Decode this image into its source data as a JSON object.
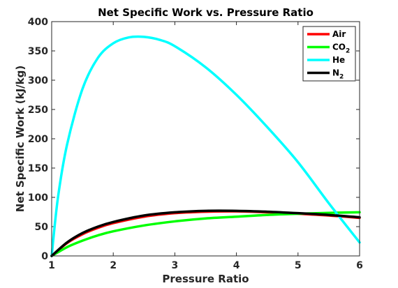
{
  "chart_data": {
    "type": "line",
    "title": "Net Specific Work vs. Pressure Ratio",
    "xlabel": "Pressure Ratio",
    "ylabel": "Net Specific Work (kJ/kg)",
    "xlim": [
      1,
      6
    ],
    "ylim": [
      0,
      400
    ],
    "xticks": [
      1,
      2,
      3,
      4,
      5,
      6
    ],
    "yticks": [
      0,
      50,
      100,
      150,
      200,
      250,
      300,
      350,
      400
    ],
    "grid": false,
    "legend_position": "top-right",
    "series": [
      {
        "name": "Air",
        "color": "#ff0000",
        "x": [
          1,
          1.25,
          1.5,
          1.75,
          2,
          2.5,
          3,
          3.5,
          4,
          4.5,
          5,
          5.5,
          6
        ],
        "y": [
          0,
          22,
          37,
          48,
          56,
          67,
          73,
          75.5,
          76,
          74.5,
          72,
          69,
          65
        ]
      },
      {
        "name": "CO2",
        "label_main": "CO",
        "label_sub": "2",
        "color": "#00ff00",
        "x": [
          1,
          1.25,
          1.5,
          1.75,
          2,
          2.5,
          3,
          3.5,
          4,
          4.5,
          5,
          5.5,
          6
        ],
        "y": [
          0,
          15,
          26,
          35,
          42,
          52,
          59,
          64,
          67,
          70,
          72,
          73.5,
          74.5
        ]
      },
      {
        "name": "He",
        "color": "#00ffff",
        "x": [
          1,
          1.1,
          1.25,
          1.5,
          1.75,
          2,
          2.25,
          2.5,
          2.75,
          3,
          3.5,
          4,
          4.5,
          5,
          5.5,
          6
        ],
        "y": [
          0,
          98,
          190,
          285,
          338,
          363,
          373,
          374,
          369,
          358,
          322,
          275,
          220,
          160,
          90,
          23
        ]
      },
      {
        "name": "N2",
        "label_main": "N",
        "label_sub": "2",
        "color": "#000000",
        "x": [
          1,
          1.25,
          1.5,
          1.75,
          2,
          2.5,
          3,
          3.5,
          4,
          4.5,
          5,
          5.5,
          6
        ],
        "y": [
          0,
          23,
          39,
          50,
          58,
          69,
          74.5,
          77,
          77,
          75.5,
          73,
          70,
          66
        ]
      }
    ]
  }
}
